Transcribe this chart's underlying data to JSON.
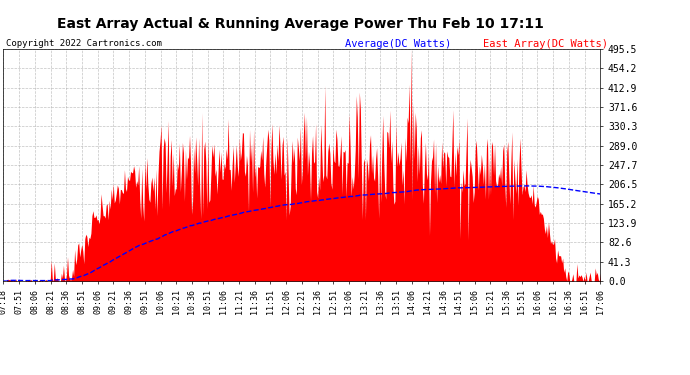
{
  "title": "East Array Actual & Running Average Power Thu Feb 10 17:11",
  "copyright": "Copyright 2022 Cartronics.com",
  "legend_avg": "Average(DC Watts)",
  "legend_east": "East Array(DC Watts)",
  "ylim": [
    0.0,
    495.5
  ],
  "ytick_values": [
    0.0,
    41.3,
    82.6,
    123.9,
    165.2,
    206.5,
    247.7,
    289.0,
    330.3,
    371.6,
    412.9,
    454.2,
    495.5
  ],
  "bg_color": "#ffffff",
  "grid_color": "#aaaaaa",
  "fill_color": "#ff0000",
  "avg_color": "#0000ff",
  "title_color": "#000000",
  "copyright_color": "#000000",
  "legend_avg_color": "#0000ff",
  "legend_east_color": "#ff0000",
  "x_labels": [
    "07:18",
    "07:51",
    "08:06",
    "08:21",
    "08:36",
    "08:51",
    "09:06",
    "09:21",
    "09:36",
    "09:51",
    "10:06",
    "10:21",
    "10:36",
    "10:51",
    "11:06",
    "11:21",
    "11:36",
    "11:51",
    "12:06",
    "12:21",
    "12:36",
    "12:51",
    "13:06",
    "13:21",
    "13:36",
    "13:51",
    "14:06",
    "14:21",
    "14:36",
    "14:51",
    "15:06",
    "15:21",
    "15:36",
    "15:51",
    "16:06",
    "16:21",
    "16:36",
    "16:51",
    "17:06"
  ]
}
